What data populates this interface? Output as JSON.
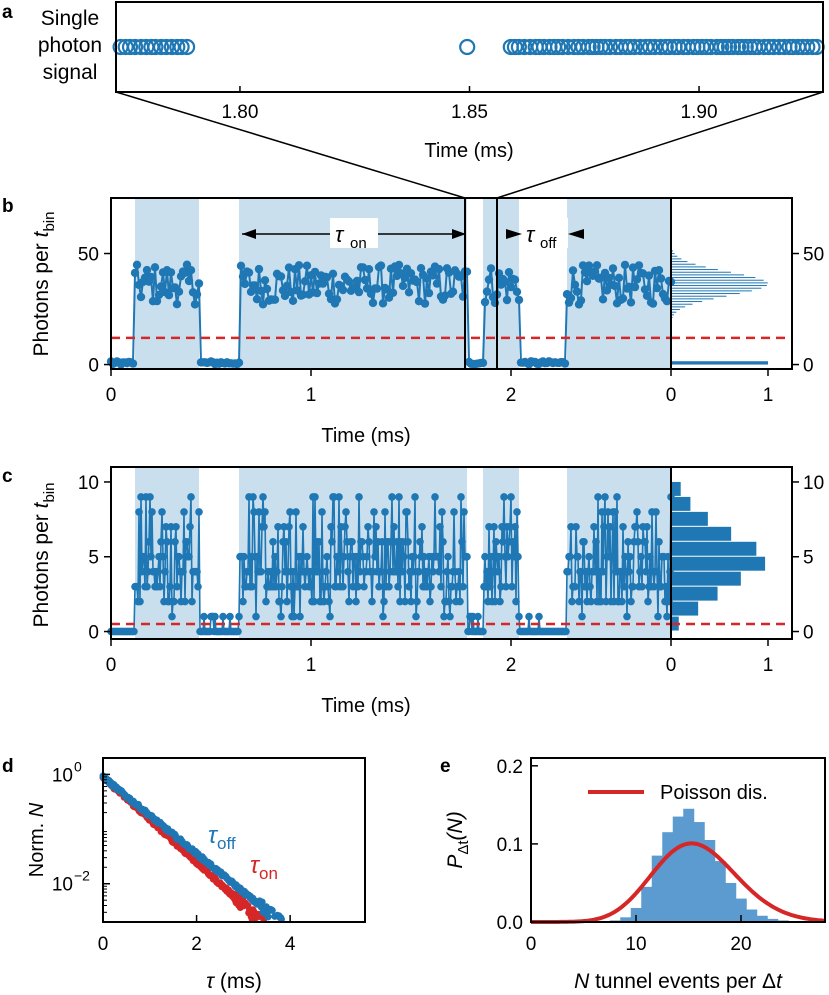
{
  "colors": {
    "blue": "#1f77b4",
    "shade": "#c9dfee",
    "hist_blue": "#5b9bd0",
    "red": "#d62728",
    "black": "#000000"
  },
  "panel_labels": {
    "a": "a",
    "b": "b",
    "c": "c",
    "d": "d",
    "e": "e"
  },
  "chart_data": [
    {
      "id": "a",
      "type": "scatter",
      "ylabel_lines": [
        "Single",
        "photon",
        "signal"
      ],
      "xlabel": "Time (ms)",
      "xticks": [
        "1.80",
        "1.85",
        "1.90"
      ],
      "xlim": [
        1.773,
        1.927
      ],
      "segments": [
        [
          1.774,
          1.789
        ],
        [
          1.8495,
          1.8505
        ],
        [
          1.859,
          1.926
        ]
      ]
    },
    {
      "id": "b",
      "type": "line",
      "ylabel": "Photons per ",
      "ylabel_var": "t",
      "ylabel_sub": "bin",
      "xlabel": "Time (ms)",
      "xticks": [
        "0",
        "1",
        "2"
      ],
      "yticks": [
        "0",
        "50"
      ],
      "xlim": [
        0,
        2.8
      ],
      "ylim": [
        -2,
        75
      ],
      "threshold": 12,
      "on_intervals": [
        [
          0.12,
          0.44
        ],
        [
          0.64,
          1.78
        ],
        [
          1.86,
          2.04
        ],
        [
          2.28,
          2.8
        ]
      ],
      "annotations": {
        "tau_on": "τ",
        "tau_on_sub": "on",
        "tau_off": "τ",
        "tau_off_sub": "off"
      },
      "zoom_window": [
        1.77,
        1.93
      ],
      "hist_xticks": [
        "0",
        "1"
      ],
      "hist_yticks": [
        "0",
        "50"
      ]
    },
    {
      "id": "c",
      "type": "line",
      "ylabel": "Photons per ",
      "ylabel_var": "t",
      "ylabel_sub": "bin",
      "xlabel": "Time (ms)",
      "xticks": [
        "0",
        "1",
        "2"
      ],
      "yticks": [
        "0",
        "5",
        "10"
      ],
      "xlim": [
        0,
        2.8
      ],
      "ylim": [
        -0.5,
        11
      ],
      "threshold": 0.5,
      "on_intervals": [
        [
          0.12,
          0.44
        ],
        [
          0.64,
          1.78
        ],
        [
          1.86,
          2.04
        ],
        [
          2.28,
          2.8
        ]
      ],
      "hist_xticks": [
        "0",
        "1"
      ],
      "hist_yticks": [
        "0",
        "5",
        "10"
      ]
    },
    {
      "id": "d",
      "type": "scatter",
      "xlabel": "τ (ms)",
      "ylabel": "Norm. ",
      "ylabel_var": "N",
      "xticks": [
        "0",
        "2",
        "4"
      ],
      "yticks": [
        "10",
        "10"
      ],
      "ytick_exps": [
        "0",
        "−2"
      ],
      "xlim": [
        0,
        5.6
      ],
      "ylim_log10": [
        -2.7,
        0.3
      ],
      "series": [
        {
          "name": "τ",
          "name_sub": "off",
          "color": "#1f77b4",
          "slope": -0.7,
          "x_end": 4.1
        },
        {
          "name": "τ",
          "name_sub": "on",
          "color": "#d62728",
          "slope": -0.78,
          "x_end": 3.6
        }
      ]
    },
    {
      "id": "e",
      "type": "bar",
      "xlabel_var1": "N",
      "xlabel_mid": " tunnel events per Δ",
      "xlabel_var2": "t",
      "ylabel_var": "P",
      "ylabel_sub": "Δt",
      "ylabel_rest": "(N)",
      "xticks": [
        "0",
        "10",
        "20"
      ],
      "yticks": [
        "0.0",
        "0.1",
        "0.2"
      ],
      "xlim": [
        0,
        28
      ],
      "ylim": [
        0,
        0.21
      ],
      "legend": "Poisson dis.",
      "hist_x": [
        8,
        9,
        10,
        11,
        12,
        13,
        14,
        15,
        16,
        17,
        18,
        19,
        20,
        21,
        22,
        23,
        24
      ],
      "hist_values": [
        0.002,
        0.006,
        0.018,
        0.045,
        0.085,
        0.115,
        0.135,
        0.145,
        0.128,
        0.105,
        0.078,
        0.05,
        0.03,
        0.016,
        0.008,
        0.004,
        0.002
      ],
      "poisson_mean": 15.8
    }
  ]
}
